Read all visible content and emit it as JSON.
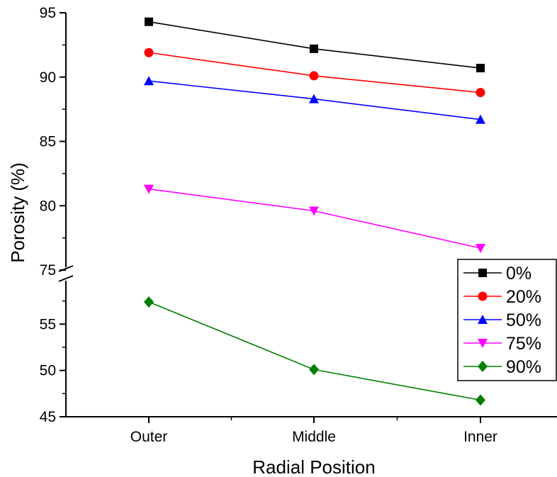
{
  "chart_data": {
    "type": "line",
    "title": "",
    "xlabel": "Radial Position",
    "ylabel": "Porosity (%)",
    "categories": [
      "Outer",
      "Middle",
      "Inner"
    ],
    "y_axis": {
      "broken": true,
      "lower_segment": {
        "range": [
          45,
          60
        ],
        "ticks": [
          45,
          50,
          55
        ]
      },
      "upper_segment": {
        "range": [
          75,
          95
        ],
        "ticks": [
          75,
          80,
          85,
          90,
          95
        ]
      }
    },
    "grid": false,
    "legend_position": "bottom-right",
    "series": [
      {
        "name": "0%",
        "color": "#000000",
        "marker": "square",
        "values": [
          94.3,
          92.2,
          90.7
        ]
      },
      {
        "name": "20%",
        "color": "#ff0000",
        "marker": "circle",
        "values": [
          91.9,
          90.1,
          88.8
        ]
      },
      {
        "name": "50%",
        "color": "#0000ff",
        "marker": "triangle-up",
        "values": [
          89.7,
          88.3,
          86.7
        ]
      },
      {
        "name": "75%",
        "color": "#ff00ff",
        "marker": "triangle-down",
        "values": [
          81.3,
          79.6,
          76.7
        ]
      },
      {
        "name": "90%",
        "color": "#008000",
        "marker": "diamond",
        "values": [
          57.4,
          50.1,
          46.8
        ]
      }
    ]
  }
}
